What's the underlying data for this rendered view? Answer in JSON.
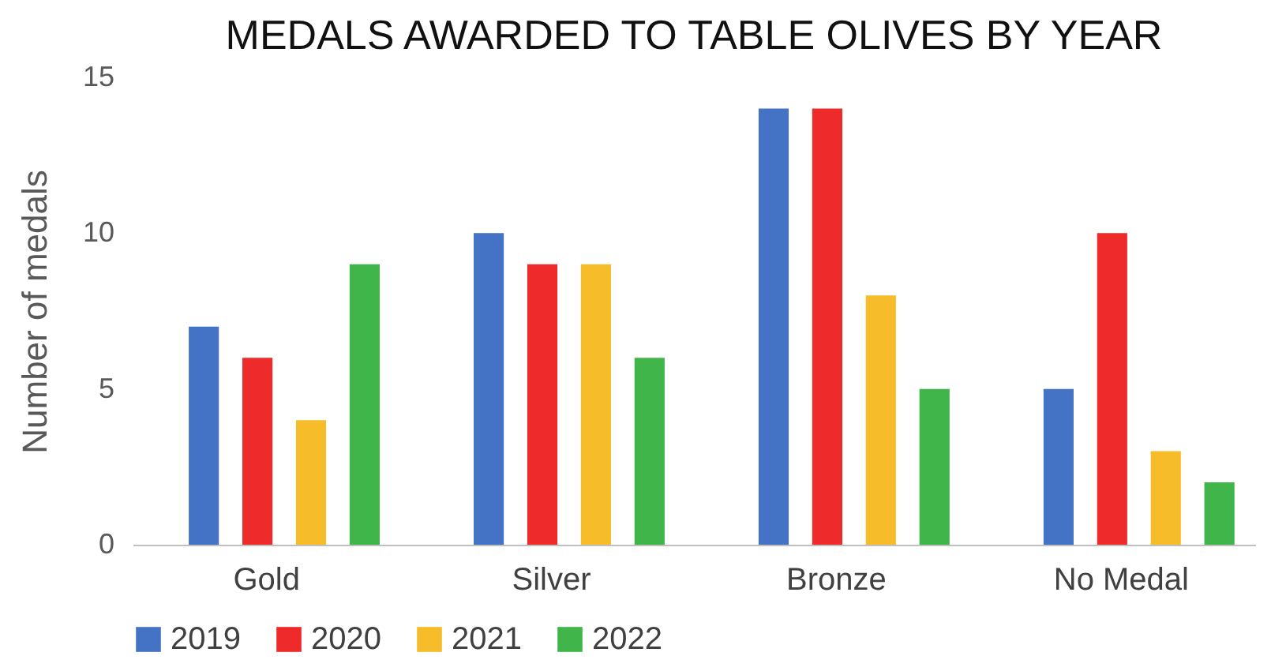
{
  "chart_data": {
    "type": "bar",
    "title": "MEDALS AWARDED TO TABLE OLIVES BY YEAR",
    "ylabel": "Number of medals",
    "categories": [
      "Gold",
      "Silver",
      "Bronze",
      "No Medal"
    ],
    "series": [
      {
        "name": "2019",
        "color": "#4472c4",
        "values": [
          7,
          10,
          14,
          5
        ]
      },
      {
        "name": "2020",
        "color": "#ee2a2a",
        "values": [
          6,
          9,
          14,
          10
        ]
      },
      {
        "name": "2021",
        "color": "#f6bc2a",
        "values": [
          4,
          9,
          8,
          3
        ]
      },
      {
        "name": "2022",
        "color": "#3fb54a",
        "values": [
          9,
          6,
          5,
          2
        ]
      }
    ],
    "ylim": [
      0,
      15
    ],
    "yticks": [
      0,
      5,
      10,
      15
    ],
    "grid": false,
    "legend": "bottom"
  }
}
